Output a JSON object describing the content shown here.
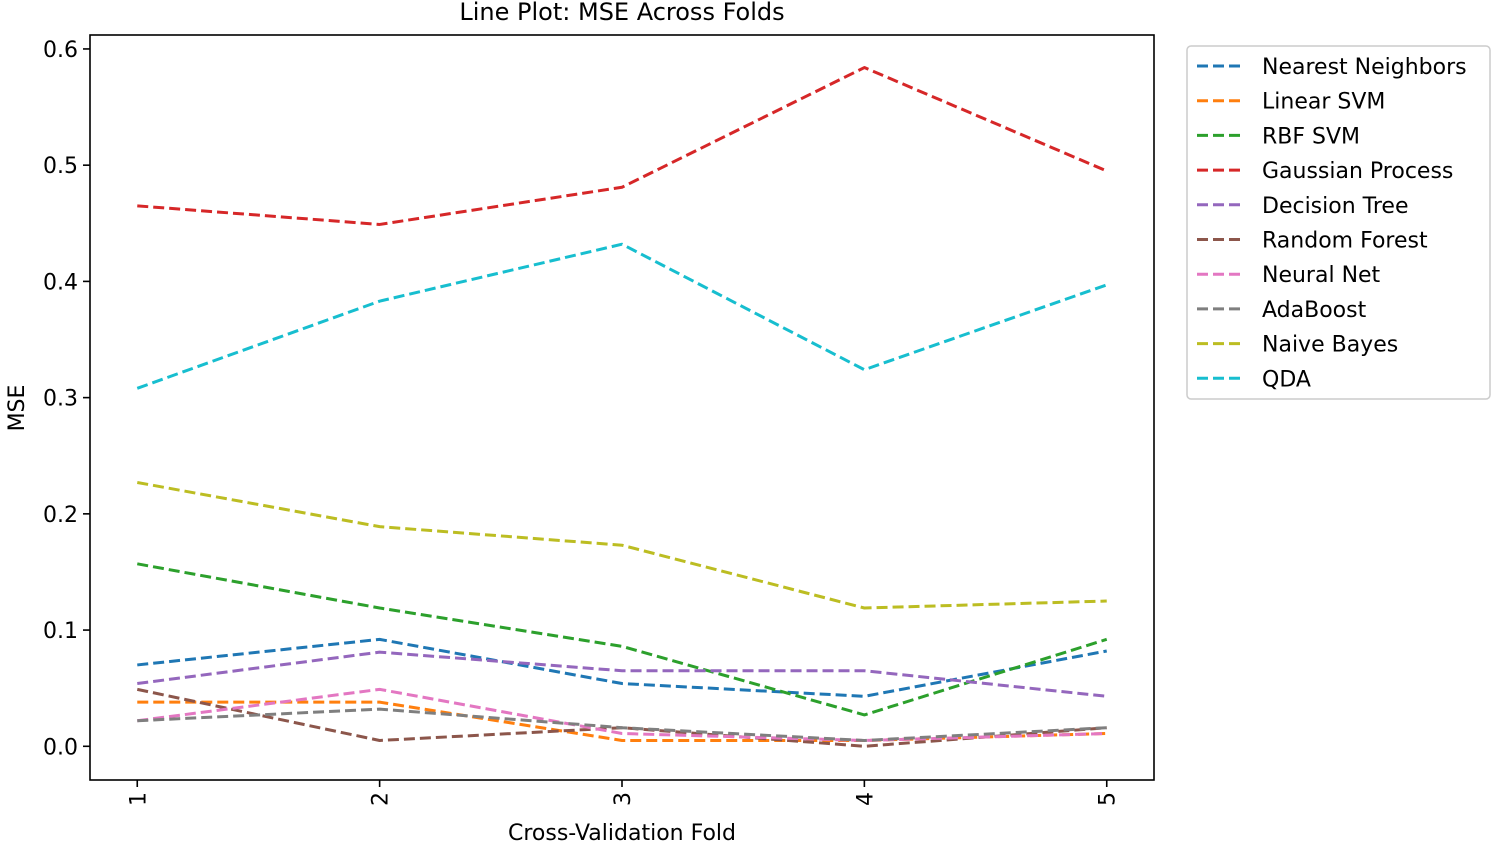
{
  "chart_data": {
    "type": "line",
    "title": "Line Plot: MSE Across Folds",
    "xlabel": "Cross-Validation Fold",
    "ylabel": "MSE",
    "x": [
      1,
      2,
      3,
      4,
      5
    ],
    "x_tick_labels": [
      "1",
      "2",
      "3",
      "4",
      "5"
    ],
    "ylim": [
      -0.029,
      0.612
    ],
    "y_ticks": [
      0.0,
      0.1,
      0.2,
      0.3,
      0.4,
      0.5,
      0.6
    ],
    "y_tick_labels": [
      "0.0",
      "0.1",
      "0.2",
      "0.3",
      "0.4",
      "0.5",
      "0.6"
    ],
    "grid": false,
    "line_style": "dashed",
    "legend_position": "outside-right-top",
    "series": [
      {
        "name": "Nearest Neighbors",
        "color": "#1f77b4",
        "values": [
          0.07,
          0.092,
          0.054,
          0.043,
          0.082
        ]
      },
      {
        "name": "Linear SVM",
        "color": "#ff7f0e",
        "values": [
          0.038,
          0.038,
          0.005,
          0.005,
          0.011
        ]
      },
      {
        "name": "RBF SVM",
        "color": "#2ca02c",
        "values": [
          0.157,
          0.119,
          0.086,
          0.027,
          0.092
        ]
      },
      {
        "name": "Gaussian Process",
        "color": "#d62728",
        "values": [
          0.465,
          0.449,
          0.481,
          0.584,
          0.495
        ]
      },
      {
        "name": "Decision Tree",
        "color": "#9467bd",
        "values": [
          0.054,
          0.081,
          0.065,
          0.065,
          0.043
        ]
      },
      {
        "name": "Random Forest",
        "color": "#8c564b",
        "values": [
          0.049,
          0.005,
          0.016,
          0.0,
          0.016
        ]
      },
      {
        "name": "Neural Net",
        "color": "#e377c2",
        "values": [
          0.022,
          0.049,
          0.011,
          0.005,
          0.011
        ]
      },
      {
        "name": "AdaBoost",
        "color": "#7f7f7f",
        "values": [
          0.022,
          0.032,
          0.016,
          0.005,
          0.016
        ]
      },
      {
        "name": "Naive Bayes",
        "color": "#bcbd22",
        "values": [
          0.227,
          0.189,
          0.173,
          0.119,
          0.125
        ]
      },
      {
        "name": "QDA",
        "color": "#17becf",
        "values": [
          0.308,
          0.383,
          0.432,
          0.324,
          0.397
        ]
      }
    ]
  }
}
